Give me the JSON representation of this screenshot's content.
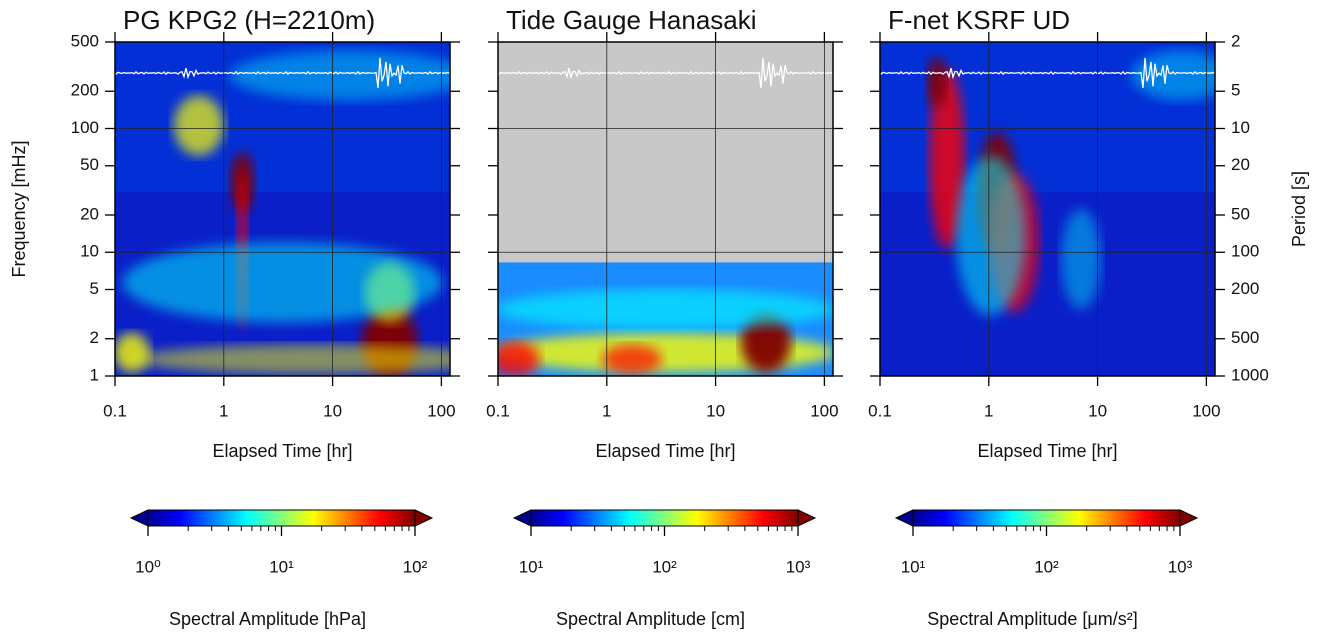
{
  "chart_data": [
    {
      "type": "spectrogram",
      "title": "PG KPG2 (H=2210m)",
      "xlabel": "Elapsed Time [hr]",
      "ylabel": "Frequency [mHz]",
      "xscale": "log",
      "yscale": "log",
      "xlim": [
        0.1,
        120
      ],
      "xticks": [
        0.1,
        1,
        10,
        100
      ],
      "ylim": [
        1,
        500
      ],
      "yticks": [
        1,
        2,
        5,
        10,
        20,
        50,
        100,
        200,
        500
      ],
      "grid": true,
      "colorbar": {
        "label": "Spectral Amplitude [hPa]",
        "scale": "log",
        "lim": [
          1,
          100
        ],
        "ticks": [
          {
            "value": 1,
            "label": "10⁰"
          },
          {
            "value": 10,
            "label": "10¹"
          },
          {
            "value": 100,
            "label": "10²"
          }
        ],
        "colormap": "jet"
      }
    },
    {
      "type": "spectrogram",
      "title": "Tide Gauge Hanasaki",
      "xlabel": "Elapsed Time [hr]",
      "xscale": "log",
      "yscale": "log",
      "xlim": [
        0.1,
        120
      ],
      "xticks": [
        0.1,
        1,
        10,
        100
      ],
      "ylim": [
        1,
        500
      ],
      "yticks": [
        1,
        2,
        5,
        10,
        20,
        50,
        100,
        200,
        500
      ],
      "grid": true,
      "colorbar": {
        "label": "Spectral Amplitude [cm]",
        "scale": "log",
        "lim": [
          10,
          1000
        ],
        "ticks": [
          {
            "value": 10,
            "label": "10¹"
          },
          {
            "value": 100,
            "label": "10²"
          },
          {
            "value": 1000,
            "label": "10³"
          }
        ],
        "colormap": "jet"
      }
    },
    {
      "type": "spectrogram",
      "title": "F-net KSRF UD",
      "xlabel": "Elapsed Time [hr]",
      "y2label": "Period [s]",
      "xscale": "log",
      "yscale": "log",
      "xlim": [
        0.1,
        120
      ],
      "xticks": [
        0.1,
        1,
        10,
        100
      ],
      "ylim": [
        1,
        500
      ],
      "yticks": [
        1,
        2,
        5,
        10,
        20,
        50,
        100,
        200,
        500
      ],
      "y2lim": [
        1000,
        2
      ],
      "y2ticks": [
        2,
        5,
        10,
        20,
        50,
        100,
        200,
        500,
        1000
      ],
      "grid": true,
      "colorbar": {
        "label": "Spectral Amplitude [μm/s²]",
        "scale": "log",
        "lim": [
          10,
          1000
        ],
        "ticks": [
          {
            "value": 10,
            "label": "10¹"
          },
          {
            "value": 100,
            "label": "10²"
          },
          {
            "value": 1000,
            "label": "10³"
          }
        ],
        "colormap": "jet"
      }
    }
  ]
}
